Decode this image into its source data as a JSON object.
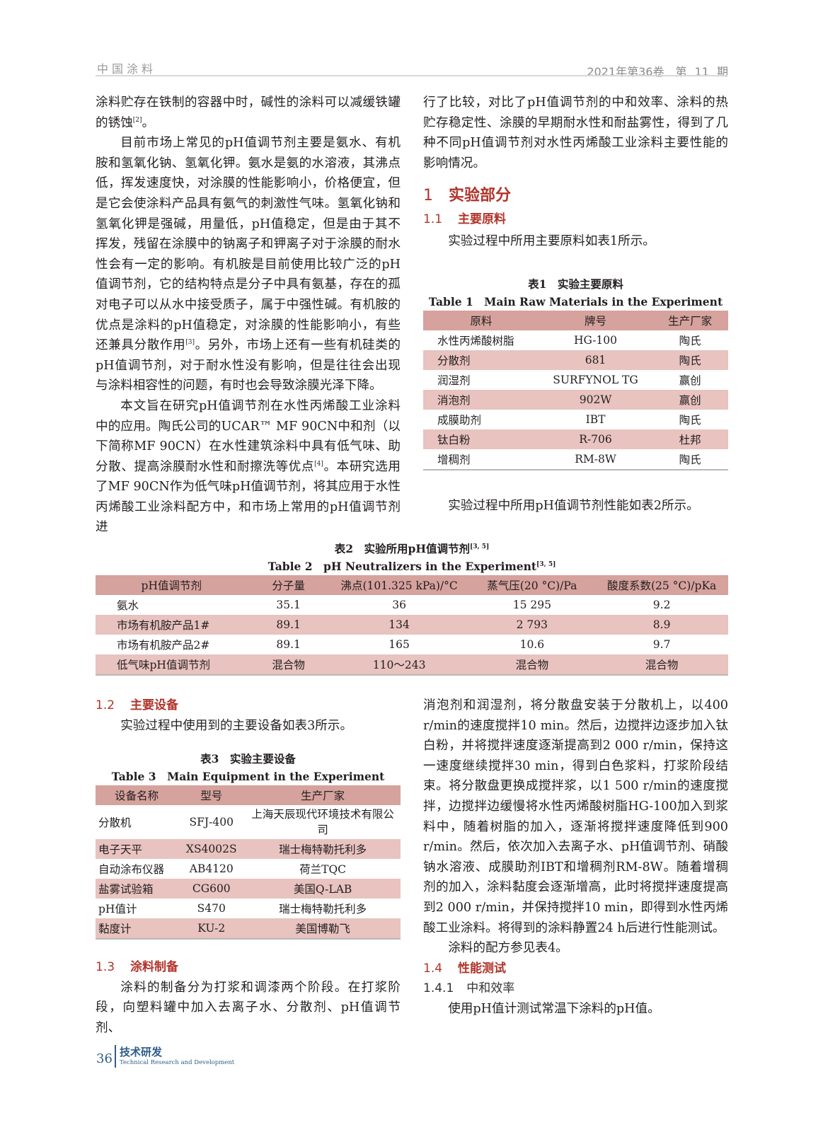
{
  "header": {
    "journal": "中国涂料",
    "issue": "2021年第36卷　第 11 期"
  },
  "left": {
    "p1": "涂料贮存在铁制的容器中时，碱性的涂料可以减缓铁罐的锈蚀",
    "p1_ref": "[2]",
    "p1_end": "。",
    "p2a": "目前市场上常见的pH值调节剂主要是氨水、有机胺和氢氧化钠、氢氧化钾。氨水是氨的水溶液，其沸点低，挥发速度快，对涂膜的性能影响小，价格便宜，但是它会使涂料产品具有氨气的刺激性气味。氢氧化钠和氢氧化钾是强碱，用量低，pH值稳定，但是由于其不挥发，残留在涂膜中的钠离子和钾离子对于涂膜的耐水性会有一定的影响。有机胺是目前使用比较广泛的pH值调节剂，它的结构特点是分子中具有氨基，存在的孤对电子可以从水中接受质子，属于中强性碱。有机胺的优点是涂料的pH值稳定，对涂膜的性能影响小，有些还兼具分散作用",
    "p2_ref": "[3]",
    "p2b": "。另外，市场上还有一些有机硅类的pH值调节剂，对于耐水性没有影响，但是往往会出现与涂料相容性的问题，有时也会导致涂膜光泽下降。",
    "p3a": "本文旨在研究pH值调节剂在水性丙烯酸工业涂料中的应用。陶氏公司的UCAR™ MF 90CN中和剂（以下简称MF 90CN）在水性建筑涂料中具有低气味、助分散、提高涂膜耐水性和耐擦洗等优点",
    "p3_ref": "[4]",
    "p3b": "。本研究选用了MF 90CN作为低气味pH值调节剂，将其应用于水性丙烯酸工业涂料配方中，和市场上常用的pH值调节剂进"
  },
  "right": {
    "p1": "行了比较，对比了pH值调节剂的中和效率、涂料的热贮存稳定性、涂膜的早期耐水性和耐盐雾性，得到了几种不同pH值调节剂对水性丙烯酸工业涂料主要性能的影响情况。",
    "s1_num": "1",
    "s1_title": "实验部分",
    "s11_num": "1.1",
    "s11_title": "主要原料",
    "s11_text": "实验过程中所用主要原料如表1所示。",
    "after_t1": "实验过程中所用pH值调节剂性能如表2所示。"
  },
  "table1": {
    "caption_cn": "表1　实验主要原料",
    "caption_en": "Table 1　Main Raw Materials in the Experiment",
    "headers": [
      "原料",
      "牌号",
      "生产厂家"
    ],
    "rows": [
      [
        "水性丙烯酸树脂",
        "HG-100",
        "陶氏"
      ],
      [
        "分散剂",
        "681",
        "陶氏"
      ],
      [
        "润湿剂",
        "SURFYNOL TG",
        "赢创"
      ],
      [
        "消泡剂",
        "902W",
        "赢创"
      ],
      [
        "成膜助剂",
        "IBT",
        "陶氏"
      ],
      [
        "钛白粉",
        "R-706",
        "杜邦"
      ],
      [
        "增稠剂",
        "RM-8W",
        "陶氏"
      ]
    ]
  },
  "table2": {
    "caption_cn": "表2　实验所用pH值调节剂",
    "caption_en": "Table 2　pH Neutralizers in the Experiment",
    "ref": "[3, 5]",
    "headers": [
      "pH值调节剂",
      "分子量",
      "沸点(101.325 kPa)/°C",
      "蒸气压(20 °C)/Pa",
      "酸度系数(25 °C)/pKa"
    ],
    "rows": [
      [
        "氨水",
        "35.1",
        "36",
        "15 295",
        "9.2"
      ],
      [
        "市场有机胺产品1#",
        "89.1",
        "134",
        "2 793",
        "8.9"
      ],
      [
        "市场有机胺产品2#",
        "89.1",
        "165",
        "10.6",
        "9.7"
      ],
      [
        "低气味pH值调节剂",
        "混合物",
        "110～243",
        "混合物",
        "混合物"
      ]
    ]
  },
  "sec12": {
    "num": "1.2",
    "title": "主要设备",
    "text": "实验过程中使用到的主要设备如表3所示。"
  },
  "table3": {
    "caption_cn": "表3　实验主要设备",
    "caption_en": "Table 3　Main Equipment in the Experiment",
    "headers": [
      "设备名称",
      "型号",
      "生产厂家"
    ],
    "rows": [
      [
        "分散机",
        "SFJ-400",
        "上海天辰现代环境技术有限公司"
      ],
      [
        "电子天平",
        "XS4002S",
        "瑞士梅特勒托利多"
      ],
      [
        "自动涂布仪器",
        "AB4120",
        "荷兰TQC"
      ],
      [
        "盐雾试验箱",
        "CG600",
        "美国Q-LAB"
      ],
      [
        "pH值计",
        "S470",
        "瑞士梅特勒托利多"
      ],
      [
        "黏度计",
        "KU-2",
        "美国博勒飞"
      ]
    ]
  },
  "sec13": {
    "num": "1.3",
    "title": "涂料制备",
    "text": "涂料的制备分为打浆和调漆两个阶段。在打浆阶段，向塑料罐中加入去离子水、分散剂、pH值调节剂、"
  },
  "right2": {
    "p1": "消泡剂和润湿剂，将分散盘安装于分散机上，以400 r/min的速度搅拌10 min。然后，边搅拌边逐步加入钛白粉，并将搅拌速度逐渐提高到2 000 r/min，保持这一速度继续搅拌30 min，得到白色浆料，打浆阶段结束。将分散盘更换成搅拌浆，以1 500 r/min的速度搅拌，边搅拌边缓慢将水性丙烯酸树脂HG-100加入到浆料中，随着树脂的加入，逐渐将搅拌速度降低到900 r/min。然后，依次加入去离子水、pH值调节剂、硝酸钠水溶液、成膜助剂IBT和增稠剂RM-8W。随着增稠剂的加入，涂料黏度会逐渐增高，此时将搅拌速度提高到2 000 r/min，并保持搅拌10 min，即得到水性丙烯酸工业涂料。将得到的涂料静置24 h后进行性能测试。",
    "p2": "涂料的配方参见表4。",
    "s14_num": "1.4",
    "s14_title": "性能测试",
    "s141_num": "1.4.1",
    "s141_title": "中和效率",
    "s141_text": "使用pH值计测试常温下涂料的pH值。"
  },
  "footer": {
    "page": "36",
    "section_cn": "技术研发",
    "section_en": "Technical Research and Development"
  },
  "colors": {
    "heading": "#b0342a",
    "table_header": "#d6a29d",
    "table_stripe": "#e8c3bf",
    "footer": "#2f5d8a"
  }
}
